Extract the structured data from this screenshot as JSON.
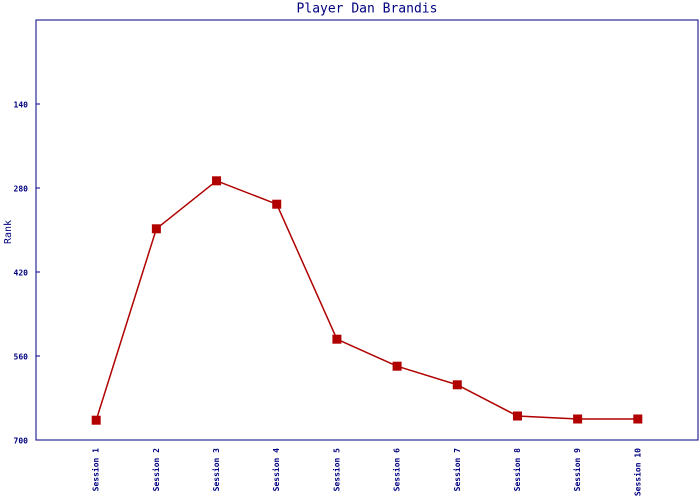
{
  "chart_data": {
    "type": "line",
    "title": "Player Dan Brandis",
    "y_label": "Rank",
    "categories": [
      "Session 1",
      "Session 2",
      "Session 3",
      "Session 4",
      "Session 5",
      "Session 6",
      "Session 7",
      "Session 8",
      "Session 9",
      "Session 10"
    ],
    "series": [
      {
        "name": "Rank",
        "color": "#b00000",
        "values": [
          667,
          348,
          268,
          307,
          532,
          577,
          608,
          660,
          665,
          665
        ]
      }
    ],
    "ylim": [
      0,
      700
    ],
    "yticks": [
      140,
      280,
      420,
      560,
      700
    ],
    "y_reversed": true,
    "grid": false,
    "legend": false
  }
}
